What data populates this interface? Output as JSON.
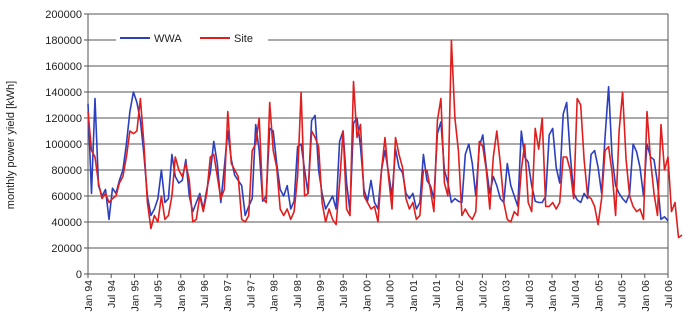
{
  "chart_data": {
    "type": "line",
    "title": "",
    "xlabel": "",
    "ylabel": "monthly power yield [kWh]",
    "ylim": [
      0,
      200000
    ],
    "yticks": [
      0,
      20000,
      40000,
      60000,
      80000,
      100000,
      120000,
      140000,
      160000,
      180000,
      200000
    ],
    "ytick_labels": [
      "0",
      "20000",
      "40000",
      "60000",
      "80000",
      "100000",
      "120000",
      "140000",
      "160000",
      "180000",
      "200000"
    ],
    "xtick_labels": [
      "Jan 94",
      "Jul 94",
      "Jan 95",
      "Jul 95",
      "Jan 96",
      "Jul 96",
      "Jan 97",
      "Jul 97",
      "Jan 98",
      "Jul 98",
      "Jan 99",
      "Jul 99",
      "Jan 00",
      "Jul 00",
      "Jan 01",
      "Jul 01",
      "Jan 02",
      "Jul 02",
      "Jan 03",
      "Jul 03",
      "Jan 04",
      "Jul 04",
      "Jan 05",
      "Jul 05",
      "Jan 06",
      "Jul 06"
    ],
    "grid": true,
    "legend_position": "top-left",
    "series": [
      {
        "name": "WWA",
        "color": "#2b3fbf",
        "values": [
          131000,
          62000,
          135000,
          68000,
          60000,
          65000,
          42000,
          66000,
          62000,
          72000,
          80000,
          100000,
          125000,
          140000,
          132000,
          118000,
          92000,
          60000,
          45000,
          50000,
          58000,
          80000,
          55000,
          58000,
          92000,
          75000,
          70000,
          72000,
          88000,
          60000,
          48000,
          55000,
          62000,
          50000,
          65000,
          78000,
          102000,
          85000,
          55000,
          82000,
          110000,
          88000,
          76000,
          72000,
          68000,
          45000,
          52000,
          58000,
          115000,
          95000,
          56000,
          60000,
          112000,
          110000,
          85000,
          65000,
          60000,
          68000,
          50000,
          56000,
          98000,
          100000,
          80000,
          62000,
          118000,
          122000,
          80000,
          62000,
          50000,
          55000,
          60000,
          50000,
          102000,
          110000,
          70000,
          48000,
          116000,
          120000,
          98000,
          65000,
          56000,
          72000,
          55000,
          50000,
          80000,
          95000,
          78000,
          60000,
          96000,
          82000,
          78000,
          62000,
          58000,
          62000,
          50000,
          55000,
          92000,
          72000,
          68000,
          58000,
          108000,
          117000,
          80000,
          70000,
          55000,
          58000,
          56000,
          55000,
          92000,
          100000,
          85000,
          60000,
          98000,
          107000,
          82000,
          62000,
          75000,
          68000,
          58000,
          55000,
          85000,
          68000,
          60000,
          52000,
          110000,
          90000,
          86000,
          68000,
          56000,
          55000,
          55000,
          60000,
          107000,
          112000,
          82000,
          70000,
          123000,
          132000,
          92000,
          62000,
          57000,
          55000,
          62000,
          58000,
          92000,
          95000,
          82000,
          62000,
          106000,
          144000,
          90000,
          68000,
          62000,
          58000,
          55000,
          62000,
          100000,
          94000,
          82000,
          60000,
          100000,
          90000,
          88000,
          70000,
          42000,
          44000,
          41000
        ]
      },
      {
        "name": "Site",
        "color": "#e01e1e",
        "values": [
          125000,
          95000,
          90000,
          70000,
          58000,
          62000,
          55000,
          58000,
          60000,
          70000,
          75000,
          90000,
          110000,
          108000,
          110000,
          135000,
          100000,
          55000,
          35000,
          45000,
          40000,
          60000,
          42000,
          45000,
          60000,
          90000,
          80000,
          75000,
          85000,
          72000,
          40000,
          42000,
          60000,
          48000,
          62000,
          90000,
          92000,
          75000,
          58000,
          65000,
          125000,
          85000,
          80000,
          75000,
          42000,
          40000,
          45000,
          95000,
          100000,
          120000,
          58000,
          55000,
          132000,
          95000,
          82000,
          50000,
          45000,
          50000,
          42000,
          48000,
          75000,
          140000,
          60000,
          62000,
          110000,
          105000,
          98000,
          55000,
          40000,
          50000,
          42000,
          38000,
          70000,
          110000,
          50000,
          45000,
          148000,
          105000,
          115000,
          60000,
          55000,
          50000,
          52000,
          40000,
          80000,
          105000,
          75000,
          50000,
          105000,
          92000,
          82000,
          58000,
          50000,
          55000,
          42000,
          45000,
          80000,
          80000,
          65000,
          48000,
          118000,
          135000,
          70000,
          60000,
          180000,
          120000,
          95000,
          45000,
          50000,
          45000,
          42000,
          48000,
          102000,
          98000,
          80000,
          50000,
          90000,
          110000,
          85000,
          55000,
          42000,
          40000,
          48000,
          45000,
          80000,
          100000,
          55000,
          48000,
          112000,
          96000,
          120000,
          52000,
          52000,
          55000,
          50000,
          55000,
          90000,
          90000,
          80000,
          58000,
          135000,
          130000,
          88000,
          60000,
          58000,
          52000,
          38000,
          58000,
          95000,
          98000,
          78000,
          45000,
          110000,
          140000,
          88000,
          60000,
          52000,
          48000,
          50000,
          42000,
          125000,
          88000,
          62000,
          45000,
          115000,
          80000,
          90000,
          48000,
          55000,
          28000,
          30000
        ]
      }
    ]
  }
}
